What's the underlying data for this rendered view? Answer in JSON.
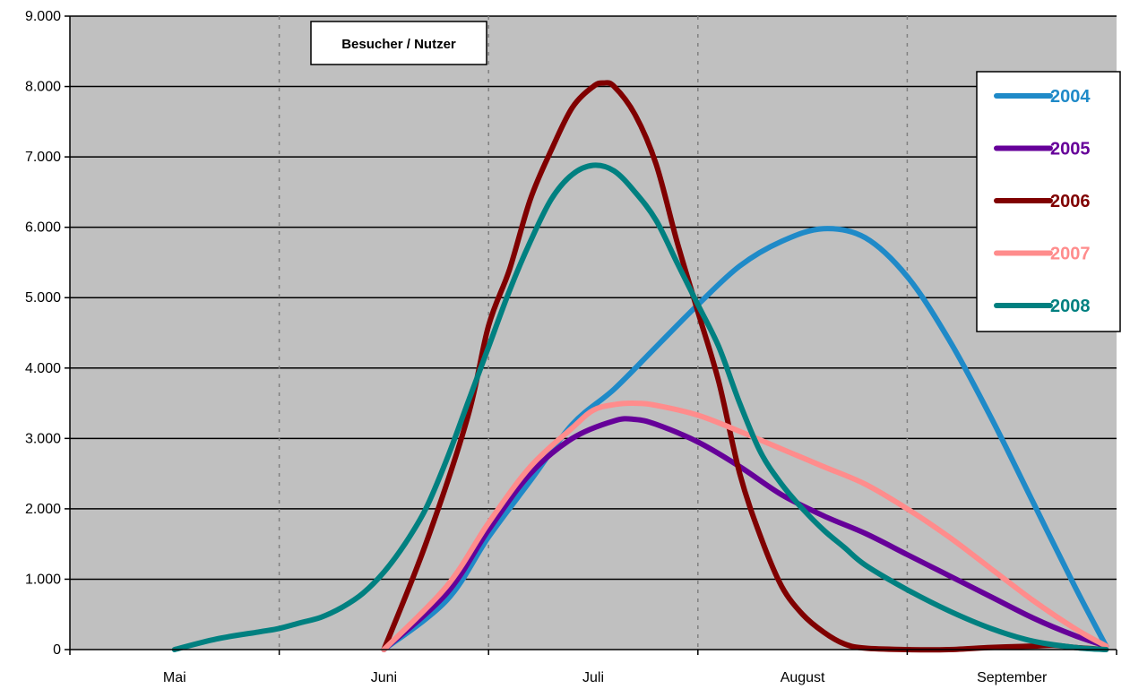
{
  "chart_data": {
    "type": "line",
    "title": "Besucher / Nutzer",
    "xlabel": "",
    "ylabel": "",
    "ylim": [
      0,
      9000
    ],
    "yticks": [
      0,
      1000,
      2000,
      3000,
      4000,
      5000,
      6000,
      7000,
      8000,
      9000
    ],
    "ytick_labels": [
      "0",
      "1.000",
      "2.000",
      "3.000",
      "4.000",
      "5.000",
      "6.000",
      "7.000",
      "8.000",
      "9.000"
    ],
    "xlim": [
      0,
      5
    ],
    "x_categories": [
      "Mai",
      "Juni",
      "Juli",
      "August",
      "September"
    ],
    "grid": true,
    "legend_position": "right",
    "series": [
      {
        "name": "2004",
        "color": "#1f8ac8",
        "points": [
          [
            1.5,
            0
          ],
          [
            1.8,
            700
          ],
          [
            2.0,
            1600
          ],
          [
            2.2,
            2400
          ],
          [
            2.4,
            3200
          ],
          [
            2.6,
            3700
          ],
          [
            2.8,
            4300
          ],
          [
            3.0,
            4900
          ],
          [
            3.2,
            5450
          ],
          [
            3.4,
            5800
          ],
          [
            3.6,
            5980
          ],
          [
            3.8,
            5850
          ],
          [
            4.0,
            5300
          ],
          [
            4.2,
            4400
          ],
          [
            4.4,
            3300
          ],
          [
            4.6,
            2100
          ],
          [
            4.8,
            900
          ],
          [
            4.95,
            50
          ]
        ]
      },
      {
        "name": "2005",
        "color": "#660099",
        "points": [
          [
            1.5,
            0
          ],
          [
            1.8,
            800
          ],
          [
            2.0,
            1700
          ],
          [
            2.2,
            2500
          ],
          [
            2.4,
            3000
          ],
          [
            2.6,
            3250
          ],
          [
            2.7,
            3270
          ],
          [
            2.8,
            3200
          ],
          [
            3.0,
            2950
          ],
          [
            3.2,
            2600
          ],
          [
            3.4,
            2200
          ],
          [
            3.6,
            1900
          ],
          [
            3.8,
            1650
          ],
          [
            4.0,
            1350
          ],
          [
            4.2,
            1050
          ],
          [
            4.4,
            750
          ],
          [
            4.6,
            450
          ],
          [
            4.8,
            200
          ],
          [
            4.95,
            50
          ]
        ]
      },
      {
        "name": "2006",
        "color": "#800000",
        "points": [
          [
            1.5,
            0
          ],
          [
            1.7,
            1500
          ],
          [
            1.9,
            3300
          ],
          [
            2.0,
            4600
          ],
          [
            2.1,
            5400
          ],
          [
            2.2,
            6400
          ],
          [
            2.3,
            7100
          ],
          [
            2.4,
            7700
          ],
          [
            2.5,
            8000
          ],
          [
            2.55,
            8050
          ],
          [
            2.6,
            8000
          ],
          [
            2.7,
            7600
          ],
          [
            2.8,
            6900
          ],
          [
            2.9,
            5800
          ],
          [
            3.0,
            4800
          ],
          [
            3.1,
            3800
          ],
          [
            3.2,
            2500
          ],
          [
            3.3,
            1600
          ],
          [
            3.4,
            900
          ],
          [
            3.5,
            500
          ],
          [
            3.6,
            250
          ],
          [
            3.7,
            80
          ],
          [
            3.8,
            20
          ],
          [
            4.0,
            0
          ],
          [
            4.2,
            0
          ],
          [
            4.4,
            30
          ],
          [
            4.6,
            50
          ],
          [
            4.7,
            60
          ],
          [
            4.8,
            30
          ],
          [
            4.95,
            0
          ]
        ]
      },
      {
        "name": "2007",
        "color": "#ff8c8c",
        "points": [
          [
            1.5,
            0
          ],
          [
            1.8,
            900
          ],
          [
            2.0,
            1800
          ],
          [
            2.2,
            2600
          ],
          [
            2.4,
            3150
          ],
          [
            2.5,
            3400
          ],
          [
            2.6,
            3480
          ],
          [
            2.7,
            3500
          ],
          [
            2.8,
            3470
          ],
          [
            3.0,
            3330
          ],
          [
            3.2,
            3100
          ],
          [
            3.4,
            2850
          ],
          [
            3.6,
            2600
          ],
          [
            3.8,
            2350
          ],
          [
            4.0,
            2000
          ],
          [
            4.2,
            1600
          ],
          [
            4.4,
            1150
          ],
          [
            4.6,
            700
          ],
          [
            4.8,
            300
          ],
          [
            4.95,
            50
          ]
        ]
      },
      {
        "name": "2008",
        "color": "#008080",
        "points": [
          [
            0.5,
            0
          ],
          [
            0.7,
            150
          ],
          [
            0.9,
            250
          ],
          [
            1.0,
            300
          ],
          [
            1.1,
            380
          ],
          [
            1.2,
            460
          ],
          [
            1.3,
            600
          ],
          [
            1.4,
            800
          ],
          [
            1.5,
            1100
          ],
          [
            1.6,
            1500
          ],
          [
            1.7,
            2000
          ],
          [
            1.8,
            2700
          ],
          [
            1.9,
            3500
          ],
          [
            2.0,
            4300
          ],
          [
            2.1,
            5100
          ],
          [
            2.2,
            5800
          ],
          [
            2.3,
            6400
          ],
          [
            2.4,
            6750
          ],
          [
            2.5,
            6880
          ],
          [
            2.6,
            6800
          ],
          [
            2.7,
            6500
          ],
          [
            2.8,
            6100
          ],
          [
            2.9,
            5500
          ],
          [
            3.0,
            4900
          ],
          [
            3.1,
            4300
          ],
          [
            3.2,
            3500
          ],
          [
            3.3,
            2800
          ],
          [
            3.4,
            2350
          ],
          [
            3.5,
            2000
          ],
          [
            3.6,
            1700
          ],
          [
            3.7,
            1450
          ],
          [
            3.8,
            1200
          ],
          [
            4.0,
            850
          ],
          [
            4.2,
            550
          ],
          [
            4.4,
            300
          ],
          [
            4.6,
            120
          ],
          [
            4.8,
            30
          ],
          [
            4.95,
            0
          ]
        ]
      }
    ]
  }
}
